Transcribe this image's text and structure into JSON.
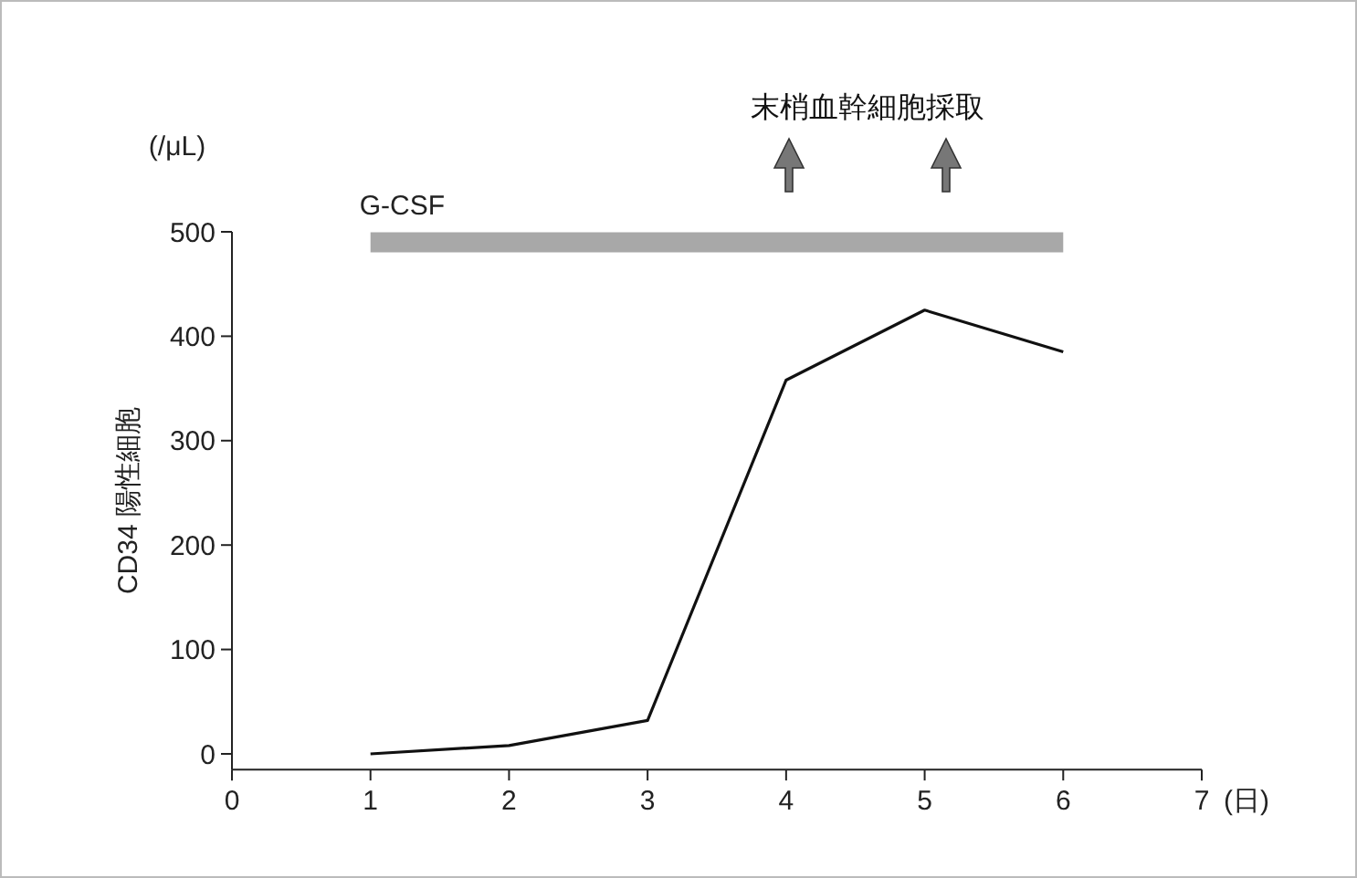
{
  "chart_data": {
    "type": "line",
    "xlabel": "(日)",
    "ylabel": "CD34 陽性細胞",
    "annotations": [
      "(/μL)",
      "末梢血幹細胞採取"
    ],
    "x": [
      1,
      2,
      3,
      4,
      5,
      6
    ],
    "series": [
      {
        "color": "#111111",
        "values": [
          0,
          8,
          32,
          358,
          425,
          385
        ]
      },
      {
        "name": "G-CSF",
        "color": "#a8a8a8",
        "x": [
          1,
          6
        ],
        "values": [
          490,
          490
        ]
      }
    ],
    "xlim": [
      0,
      7
    ],
    "xticks": [
      0,
      1,
      2,
      3,
      4,
      5,
      6,
      7
    ],
    "ylim": [
      -15,
      500
    ],
    "yticks": [
      0,
      100,
      200,
      300,
      400,
      500
    ],
    "grid": false,
    "legend": false,
    "marker": "none",
    "line_style": "solid"
  }
}
